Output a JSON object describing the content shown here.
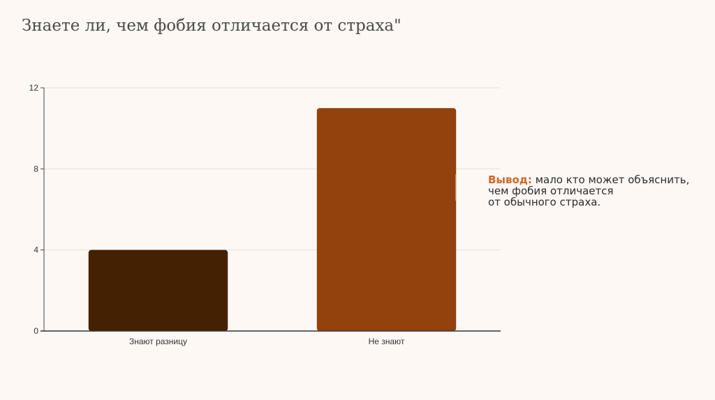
{
  "slide": {
    "title": "Знаете ли, чем фобия отличается от страха\""
  },
  "conclusion": {
    "label": "Вывод:",
    "lines": [
      " мало кто может объяснить,",
      "чем фобия отличается",
      "от обычного страха."
    ]
  },
  "colors": {
    "background": "#fdf8f3",
    "accent": "#c8692a",
    "accent_line": "#d7884a"
  },
  "chart_data": {
    "type": "bar",
    "categories": [
      "Знают разницу",
      "Не знают"
    ],
    "values": [
      4,
      11
    ],
    "bar_colors": [
      "#452103",
      "#93420d"
    ],
    "ylim": [
      0,
      12
    ],
    "yticks": [
      0,
      4,
      8,
      12
    ],
    "grid": true,
    "title": "",
    "xlabel": "",
    "ylabel": ""
  }
}
